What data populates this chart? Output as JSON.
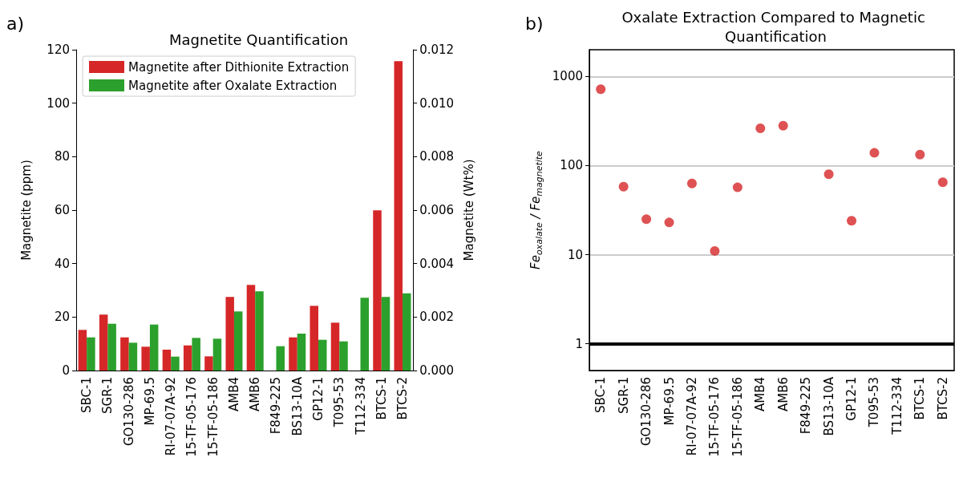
{
  "chart_data": [
    {
      "type": "bar",
      "title": "Magnetite Quantification",
      "ylabel": "Magnetite (ppm)",
      "y2label": "Magnetite (Wt%)",
      "annotations": [
        "a)"
      ],
      "categories": [
        "SBC-1",
        "SGR-1",
        "GO130-286",
        "MP-69.5",
        "RI-07-07A-92",
        "15-TF-05-176",
        "15-TF-05-186",
        "AMB4",
        "AMB6",
        "F849-225",
        "BS13-10A",
        "GP12-1",
        "T095-53",
        "T112-334",
        "BTCS-1",
        "BTCS-2"
      ],
      "series": [
        {
          "name": "Magnetite after Dithionite Extraction",
          "color": "#d62728",
          "values": [
            15.2,
            20.9,
            12.4,
            8.9,
            7.8,
            9.4,
            5.3,
            27.5,
            32.0,
            null,
            12.4,
            24.2,
            17.9,
            null,
            59.9,
            115.7
          ]
        },
        {
          "name": "Magnetite after Oxalate Extraction",
          "color": "#2ca02c",
          "values": [
            12.4,
            17.5,
            10.4,
            17.2,
            5.2,
            12.2,
            11.9,
            22.1,
            29.6,
            9.1,
            13.8,
            11.5,
            10.9,
            27.2,
            27.5,
            28.9
          ]
        }
      ],
      "ylim": [
        0,
        120
      ],
      "yticks": [
        0,
        20,
        40,
        60,
        80,
        100,
        120
      ],
      "y2lim": [
        0,
        0.012
      ],
      "y2ticks": [
        {
          "value": 0,
          "label": "0.000"
        },
        {
          "value": 0.002,
          "label": "0.002"
        },
        {
          "value": 0.004,
          "label": "0.004"
        },
        {
          "value": 0.006,
          "label": "0.006"
        },
        {
          "value": 0.008,
          "label": "0.008"
        },
        {
          "value": 0.01,
          "label": "0.010"
        },
        {
          "value": 0.012,
          "label": "0.012"
        }
      ],
      "legend": "top left",
      "grid": false
    },
    {
      "type": "scatter",
      "title": "Oxalate Extraction Compared to Magnetic Quantification",
      "ylabel": "Fe$_{oxalate}$ / Fe$_{magnetite}$",
      "annotations": [
        "b)"
      ],
      "categories": [
        "SBC-1",
        "SGR-1",
        "GO130-286",
        "MP-69.5",
        "RI-07-07A-92",
        "15-TF-05-176",
        "15-TF-05-186",
        "AMB4",
        "AMB6",
        "F849-225",
        "BS13-10A",
        "GP12-1",
        "T095-53",
        "T112-334",
        "BTCS-1",
        "BTCS-2"
      ],
      "series": [
        {
          "color": "#d62728",
          "values": [
            720,
            58,
            25,
            23,
            63,
            11,
            57,
            262,
            280,
            null,
            80,
            24,
            139,
            null,
            133,
            65
          ]
        }
      ],
      "log": "y",
      "ylim": [
        0.5,
        2000
      ],
      "yticks": [
        1,
        10,
        100,
        1000
      ],
      "grid": "y",
      "marker": "circle",
      "legend": false,
      "ref_lines": [
        {
          "axis": "y",
          "value": 1,
          "color": "#000000"
        }
      ]
    }
  ]
}
